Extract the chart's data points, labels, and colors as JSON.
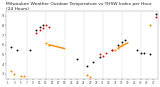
{
  "title": "Milwaukee Weather Outdoor Temperature vs THSW Index per Hour (24 Hours)",
  "title_fontsize": 3.2,
  "background_color": "#ffffff",
  "grid_color": "#bbbbbb",
  "xlim": [
    0.5,
    48.5
  ],
  "ylim": [
    25,
    95
  ],
  "yticks": [
    30,
    40,
    50,
    60,
    70,
    80,
    90
  ],
  "ytick_labels": [
    "3",
    "4",
    "5",
    "6",
    "7",
    "8",
    "9"
  ],
  "xticks": [
    1,
    3,
    5,
    7,
    9,
    11,
    13,
    15,
    17,
    19,
    21,
    23,
    25,
    27,
    29,
    31,
    33,
    35,
    37,
    39,
    41,
    43,
    45,
    47
  ],
  "vgrid_positions": [
    7,
    13,
    19,
    25,
    31,
    37,
    43
  ],
  "black_dots": [
    [
      2,
      58
    ],
    [
      4,
      55
    ],
    [
      8,
      55
    ],
    [
      10,
      75
    ],
    [
      11,
      78
    ],
    [
      12,
      80
    ],
    [
      23,
      45
    ],
    [
      26,
      38
    ],
    [
      28,
      42
    ],
    [
      30,
      47
    ],
    [
      34,
      55
    ],
    [
      36,
      60
    ],
    [
      37,
      63
    ],
    [
      38,
      65
    ],
    [
      42,
      55
    ],
    [
      43,
      52
    ],
    [
      44,
      52
    ],
    [
      46,
      50
    ],
    [
      48,
      92
    ]
  ],
  "red_dots": [
    [
      10,
      72
    ],
    [
      11,
      75
    ],
    [
      12,
      77
    ],
    [
      13,
      80
    ],
    [
      14,
      78
    ],
    [
      30,
      50
    ],
    [
      31,
      48
    ],
    [
      32,
      52
    ],
    [
      34,
      55
    ],
    [
      48,
      88
    ]
  ],
  "orange_dots": [
    [
      2,
      33
    ],
    [
      3,
      30
    ],
    [
      5,
      28
    ],
    [
      6,
      28
    ],
    [
      13,
      62
    ],
    [
      14,
      60
    ],
    [
      26,
      29
    ],
    [
      27,
      27
    ],
    [
      35,
      55
    ],
    [
      36,
      57
    ],
    [
      37,
      60
    ],
    [
      46,
      80
    ]
  ],
  "orange_segments": [
    [
      [
        14,
        60
      ],
      [
        19,
        56
      ]
    ],
    [
      [
        36,
        57
      ],
      [
        39,
        62
      ]
    ]
  ],
  "black_color": "#000000",
  "red_color": "#dd0000",
  "orange_color": "#ff8800",
  "marker_size": 1.8,
  "orange_linewidth": 1.0
}
